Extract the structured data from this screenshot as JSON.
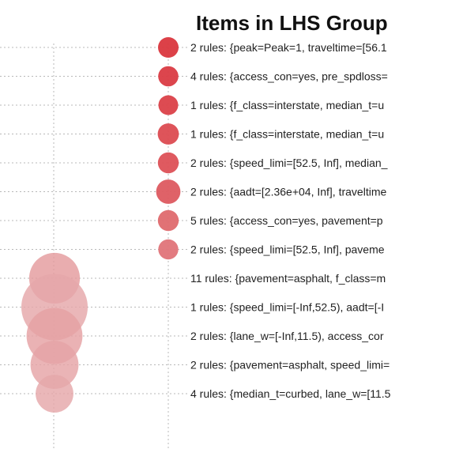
{
  "chart_data": {
    "type": "grouped-matrix-bubble",
    "title": "Items in LHS Group",
    "rows": [
      {
        "label": "2 rules: {peak=Peak=1, traveltime=[56.1",
        "size": 0.35,
        "shade": 0.95
      },
      {
        "label": "4 rules: {access_con=yes, pre_spdloss=",
        "size": 0.33,
        "shade": 0.92
      },
      {
        "label": "1 rules: {f_class=interstate, median_t=u",
        "size": 0.3,
        "shade": 0.88
      },
      {
        "label": "1 rules: {f_class=interstate, median_t=u",
        "size": 0.38,
        "shade": 0.82
      },
      {
        "label": "2 rules: {speed_limi=[52.5, Inf], median_",
        "size": 0.36,
        "shade": 0.78
      },
      {
        "label": "2 rules: {aadt=[2.36e+04, Inf], traveltime",
        "size": 0.55,
        "shade": 0.72
      },
      {
        "label": "5 rules: {access_con=yes, pavement=p",
        "size": 0.36,
        "shade": 0.62
      },
      {
        "label": "2 rules: {speed_limi=[52.5, Inf], paveme",
        "size": 0.32,
        "shade": 0.55
      },
      {
        "label": "11 rules: {pavement=asphalt, f_class=m",
        "size": 0.7,
        "shade": 0.3
      },
      {
        "label": "1 rules: {speed_limi=[-Inf,52.5), aadt=[-I",
        "size": 1.0,
        "shade": 0.22
      },
      {
        "label": "2 rules: {lane_w=[-Inf,11.5), access_cor",
        "size": 0.8,
        "shade": 0.26
      },
      {
        "label": "2 rules: {pavement=asphalt, speed_limi=",
        "size": 0.65,
        "shade": 0.24
      },
      {
        "label": "4 rules: {median_t=curbed, lane_w=[11.5",
        "size": 0.45,
        "shade": 0.22
      }
    ],
    "colors": {
      "high": "#d92f37",
      "low": "#e9c9c9"
    },
    "grid": true
  }
}
